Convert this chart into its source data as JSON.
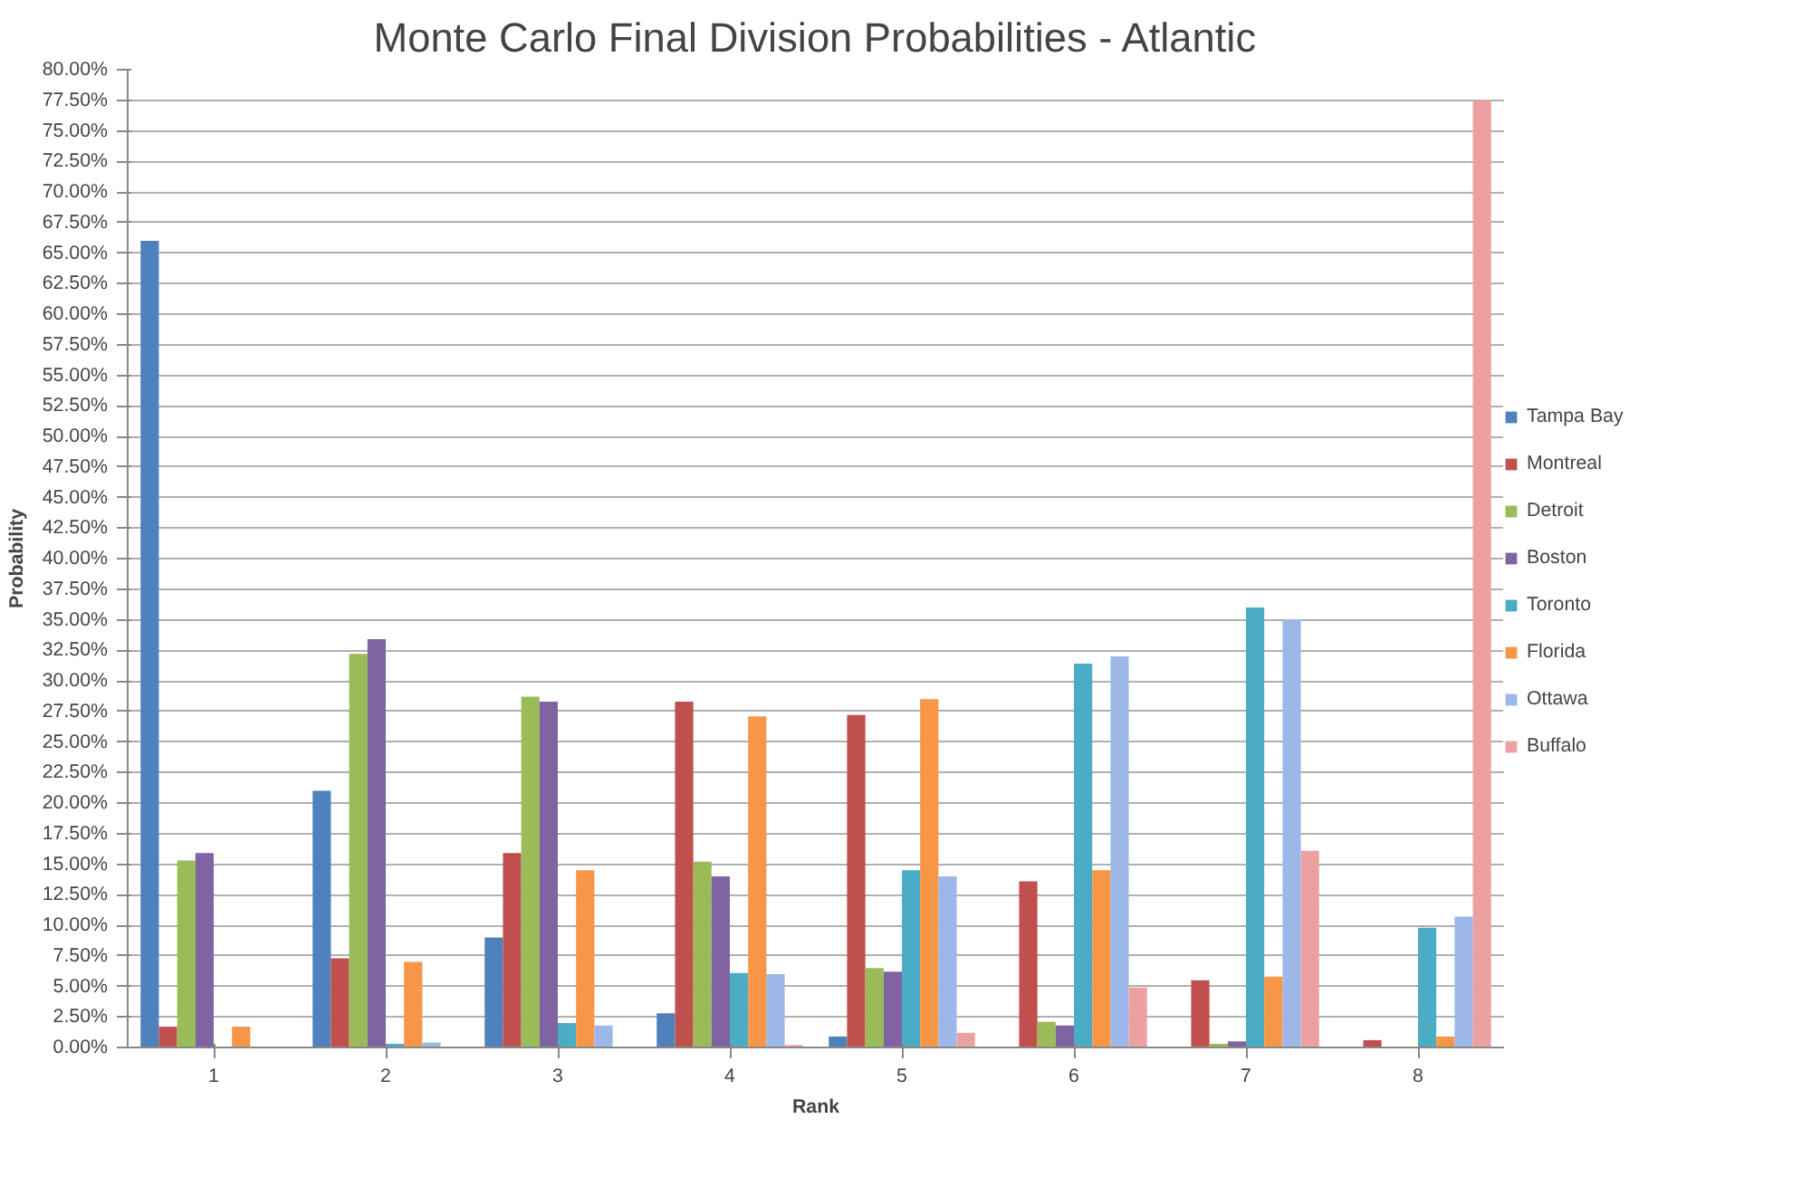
{
  "chart_data": {
    "type": "bar",
    "title": "Monte Carlo Final Division Probabilities - Atlantic",
    "xlabel": "Rank",
    "ylabel": "Probability",
    "categories": [
      "1",
      "2",
      "3",
      "4",
      "5",
      "6",
      "7",
      "8"
    ],
    "series": [
      {
        "name": "Tampa Bay",
        "color": "#4f81bd",
        "values": [
          66.0,
          21.0,
          9.0,
          2.8,
          0.9,
          null,
          0,
          0
        ]
      },
      {
        "name": "Montreal",
        "color": "#c0504d",
        "values": [
          1.7,
          7.3,
          15.9,
          28.3,
          27.2,
          13.6,
          5.5,
          0.6
        ]
      },
      {
        "name": "Detroit",
        "color": "#9bbb59",
        "values": [
          15.3,
          32.2,
          28.7,
          15.2,
          6.5,
          2.1,
          0.3,
          0
        ]
      },
      {
        "name": "Boston",
        "color": "#8064a2",
        "values": [
          15.9,
          33.4,
          28.3,
          14.0,
          6.2,
          1.8,
          0.5,
          0
        ]
      },
      {
        "name": "Toronto",
        "color": "#4bacc6",
        "values": [
          0,
          0.3,
          2.0,
          6.1,
          14.5,
          31.4,
          36.0,
          9.8
        ]
      },
      {
        "name": "Florida",
        "color": "#f79646",
        "values": [
          1.7,
          7.0,
          14.5,
          27.1,
          28.5,
          14.5,
          5.8,
          0.9
        ]
      },
      {
        "name": "Ottawa",
        "color": "#9db8e8",
        "values": [
          null,
          0.4,
          1.8,
          6.0,
          14.0,
          32.0,
          35.0,
          10.7
        ]
      },
      {
        "name": "Buffalo",
        "color": "#eda0a0",
        "values": [
          0,
          0,
          0,
          0.2,
          1.2,
          4.9,
          16.1,
          77.5
        ]
      }
    ],
    "ylim": [
      0,
      80
    ],
    "yticks": [
      {
        "value": 0,
        "label": "0.00%"
      },
      {
        "value": 2.5,
        "label": "2.50%"
      },
      {
        "value": 5,
        "label": "5.00%"
      },
      {
        "value": 7.5,
        "label": "7.50%"
      },
      {
        "value": 10,
        "label": "10.00%"
      },
      {
        "value": 12.5,
        "label": "12.50%"
      },
      {
        "value": 15,
        "label": "15.00%"
      },
      {
        "value": 17.5,
        "label": "17.50%"
      },
      {
        "value": 20,
        "label": "20.00%"
      },
      {
        "value": 22.5,
        "label": "22.50%"
      },
      {
        "value": 25,
        "label": "25.00%"
      },
      {
        "value": 27.5,
        "label": "27.50%"
      },
      {
        "value": 30,
        "label": "30.00%"
      },
      {
        "value": 32.5,
        "label": "32.50%"
      },
      {
        "value": 35,
        "label": "35.00%"
      },
      {
        "value": 37.5,
        "label": "37.50%"
      },
      {
        "value": 40,
        "label": "40.00%"
      },
      {
        "value": 42.5,
        "label": "42.50%"
      },
      {
        "value": 45,
        "label": "45.00%"
      },
      {
        "value": 47.5,
        "label": "47.50%"
      },
      {
        "value": 50,
        "label": "50.00%"
      },
      {
        "value": 52.5,
        "label": "52.50%"
      },
      {
        "value": 55,
        "label": "55.00%"
      },
      {
        "value": 57.5,
        "label": "57.50%"
      },
      {
        "value": 60,
        "label": "60.00%"
      },
      {
        "value": 62.5,
        "label": "62.50%"
      },
      {
        "value": 65,
        "label": "65.00%"
      },
      {
        "value": 67.5,
        "label": "67.50%"
      },
      {
        "value": 70,
        "label": "70.00%"
      },
      {
        "value": 72.5,
        "label": "72.50%"
      },
      {
        "value": 75,
        "label": "75.00%"
      },
      {
        "value": 77.5,
        "label": "77.50%"
      },
      {
        "value": 80,
        "label": "80.00%"
      }
    ],
    "grid": "y",
    "legend": "right"
  }
}
